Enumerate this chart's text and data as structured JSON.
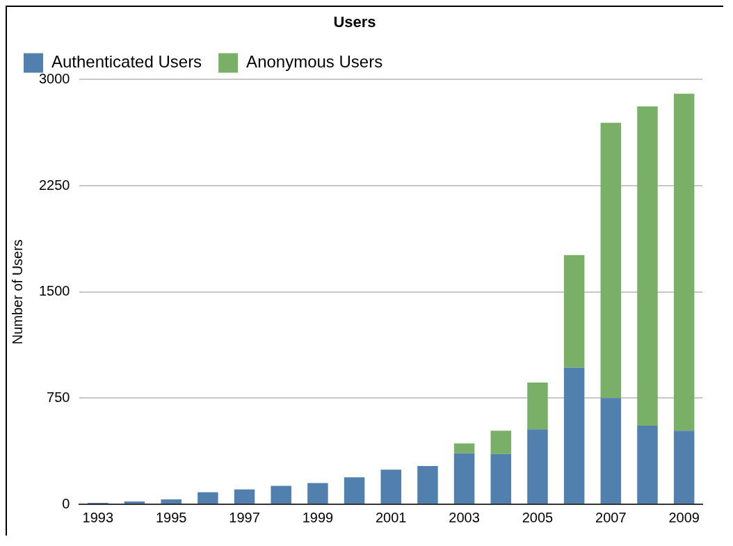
{
  "chart_data": {
    "type": "bar",
    "title": "Users",
    "ylabel": "Number of Users",
    "stacked": true,
    "categories": [
      "1993",
      null,
      "1995",
      null,
      "1997",
      null,
      "1999",
      null,
      "2001",
      null,
      "2003",
      null,
      "2005",
      null,
      "2007",
      null,
      "2009"
    ],
    "series": [
      {
        "name": "Authenticated Users",
        "color": "#517fae",
        "values": [
          10,
          20,
          35,
          85,
          105,
          130,
          150,
          190,
          245,
          270,
          360,
          355,
          530,
          965,
          750,
          555,
          520
        ]
      },
      {
        "name": "Anonymous Users",
        "color": "#7aaf67",
        "values": [
          null,
          null,
          null,
          null,
          null,
          null,
          null,
          null,
          null,
          null,
          70,
          165,
          330,
          795,
          1945,
          2255,
          2380
        ]
      }
    ],
    "ylim": [
      0,
      3000
    ],
    "yticks": [
      0,
      750,
      1500,
      2250,
      3000
    ],
    "grid": "y",
    "legend": "top"
  }
}
